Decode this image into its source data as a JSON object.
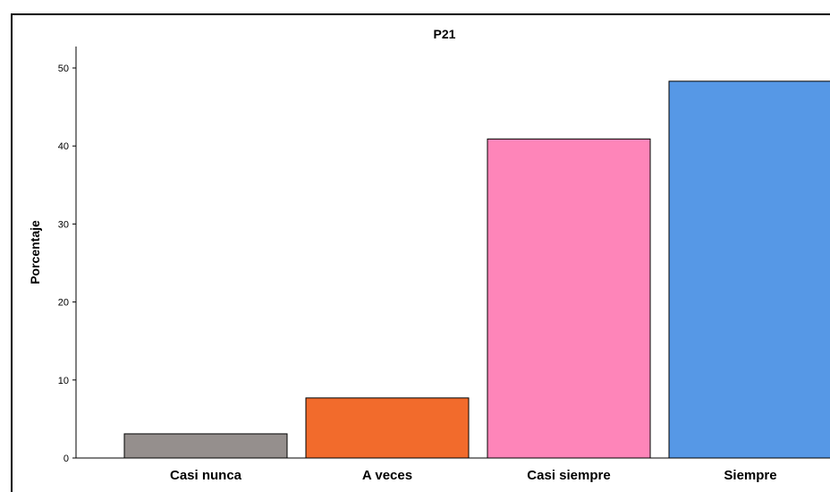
{
  "chart_data": {
    "type": "bar",
    "title": "P21",
    "xlabel": "",
    "ylabel": "Porcentaje",
    "categories": [
      "Casi nunca",
      "A veces",
      "Casi siempre",
      "Siempre"
    ],
    "values": [
      3.1,
      7.7,
      40.9,
      48.3
    ],
    "colors": [
      "#958f8d",
      "#f26b2c",
      "#fe85b9",
      "#5698e6"
    ],
    "ylim": [
      0,
      52
    ],
    "yticks": [
      0,
      10,
      20,
      30,
      40,
      50
    ],
    "grid": false,
    "legend": "none"
  }
}
